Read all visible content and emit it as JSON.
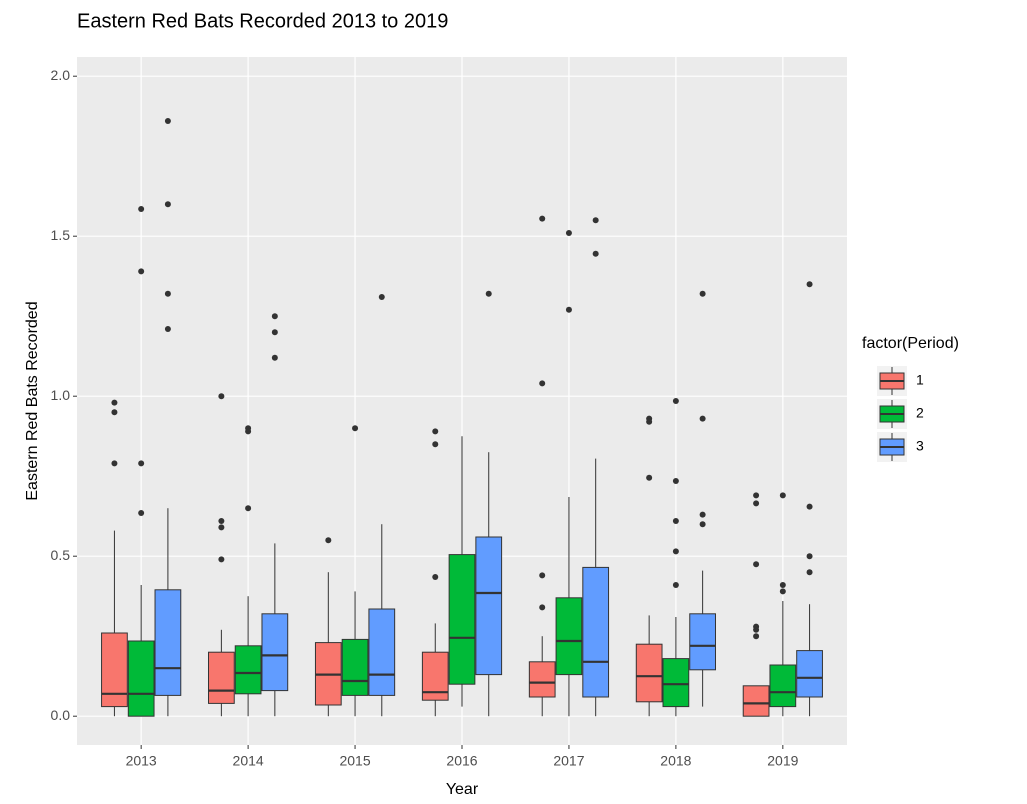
{
  "chart_data": {
    "type": "boxplot",
    "title": "Eastern Red Bats Recorded 2013 to 2019",
    "x_label": "Year",
    "y_label": "Eastern Red Bats Recorded",
    "legend_title": "factor(Period)",
    "legend_position": "right",
    "grid": true,
    "categories": [
      "2013",
      "2014",
      "2015",
      "2016",
      "2017",
      "2018",
      "2019"
    ],
    "ylim": [
      -0.09,
      2.06
    ],
    "yticks": [
      {
        "value": 0,
        "label": "0.0"
      },
      0.5,
      {
        "value": 1,
        "label": "1.0"
      },
      1.5,
      {
        "value": 2,
        "label": "2.0"
      }
    ],
    "series": [
      {
        "name": "1",
        "color": "#F8766D",
        "values": [
          {
            "min": 0,
            "q1": 0.03,
            "median": 0.07,
            "q3": 0.26,
            "max": 0.58,
            "outliers": [
              0.98,
              0.95,
              0.79
            ]
          },
          {
            "min": 0,
            "q1": 0.04,
            "median": 0.08,
            "q3": 0.2,
            "max": 0.27,
            "outliers": [
              1.0,
              0.61,
              0.59,
              0.49
            ]
          },
          {
            "min": 0,
            "q1": 0.035,
            "median": 0.13,
            "q3": 0.23,
            "max": 0.45,
            "outliers": [
              0.55
            ]
          },
          {
            "min": 0,
            "q1": 0.05,
            "median": 0.075,
            "q3": 0.2,
            "max": 0.29,
            "outliers": [
              0.89,
              0.85,
              0.435
            ]
          },
          {
            "min": 0,
            "q1": 0.06,
            "median": 0.105,
            "q3": 0.17,
            "max": 0.25,
            "outliers": [
              1.555,
              1.04,
              0.44,
              0.34
            ]
          },
          {
            "min": 0,
            "q1": 0.045,
            "median": 0.125,
            "q3": 0.225,
            "max": 0.315,
            "outliers": [
              0.93,
              0.92,
              0.745
            ]
          },
          {
            "min": 0,
            "q1": 0,
            "median": 0.04,
            "q3": 0.095,
            "max": 0.095,
            "outliers": [
              0.69,
              0.665,
              0.475,
              0.28,
              0.27,
              0.25
            ]
          }
        ]
      },
      {
        "name": "2",
        "color": "#00BA38",
        "values": [
          {
            "min": 0,
            "q1": 0,
            "median": 0.07,
            "q3": 0.235,
            "max": 0.41,
            "outliers": [
              1.585,
              1.39,
              0.79,
              0.635
            ]
          },
          {
            "min": 0,
            "q1": 0.07,
            "median": 0.135,
            "q3": 0.22,
            "max": 0.375,
            "outliers": [
              0.9,
              0.89,
              0.65
            ]
          },
          {
            "min": 0,
            "q1": 0.065,
            "median": 0.11,
            "q3": 0.24,
            "max": 0.39,
            "outliers": [
              0.9
            ]
          },
          {
            "min": 0.03,
            "q1": 0.1,
            "median": 0.245,
            "q3": 0.505,
            "max": 0.875,
            "outliers": []
          },
          {
            "min": 0,
            "q1": 0.13,
            "median": 0.235,
            "q3": 0.37,
            "max": 0.685,
            "outliers": [
              1.51,
              1.27
            ]
          },
          {
            "min": 0,
            "q1": 0.03,
            "median": 0.1,
            "q3": 0.18,
            "max": 0.31,
            "outliers": [
              0.985,
              0.735,
              0.61,
              0.515,
              0.41
            ]
          },
          {
            "min": 0,
            "q1": 0.03,
            "median": 0.075,
            "q3": 0.16,
            "max": 0.36,
            "outliers": [
              0.69,
              0.41,
              0.39
            ]
          }
        ]
      },
      {
        "name": "3",
        "color": "#619CFF",
        "values": [
          {
            "min": 0,
            "q1": 0.065,
            "median": 0.15,
            "q3": 0.395,
            "max": 0.65,
            "outliers": [
              1.86,
              1.6,
              1.32,
              1.21
            ]
          },
          {
            "min": 0,
            "q1": 0.08,
            "median": 0.19,
            "q3": 0.32,
            "max": 0.54,
            "outliers": [
              1.25,
              1.2,
              1.12
            ]
          },
          {
            "min": 0,
            "q1": 0.065,
            "median": 0.13,
            "q3": 0.335,
            "max": 0.6,
            "outliers": [
              1.31
            ]
          },
          {
            "min": 0,
            "q1": 0.13,
            "median": 0.385,
            "q3": 0.56,
            "max": 0.825,
            "outliers": [
              1.32
            ]
          },
          {
            "min": 0,
            "q1": 0.06,
            "median": 0.17,
            "q3": 0.465,
            "max": 0.805,
            "outliers": [
              1.55,
              1.445
            ]
          },
          {
            "min": 0.03,
            "q1": 0.145,
            "median": 0.22,
            "q3": 0.32,
            "max": 0.455,
            "outliers": [
              1.32,
              0.93,
              0.63,
              0.6
            ]
          },
          {
            "min": 0,
            "q1": 0.06,
            "median": 0.12,
            "q3": 0.205,
            "max": 0.35,
            "outliers": [
              1.35,
              0.655,
              0.5,
              0.45
            ]
          }
        ]
      }
    ]
  }
}
